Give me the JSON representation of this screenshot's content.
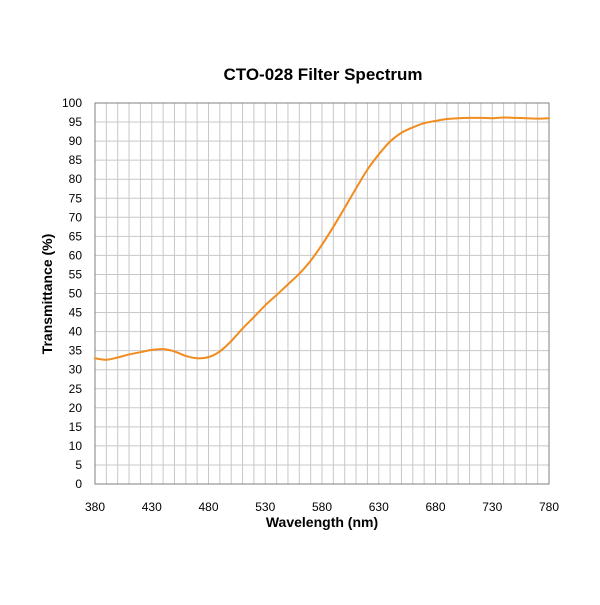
{
  "chart_data": {
    "type": "line",
    "title": "CTO-028 Filter Spectrum",
    "xlabel": "Wavelength (nm)",
    "ylabel": "Transmittance (%)",
    "xlim": [
      380,
      780
    ],
    "ylim": [
      0,
      100
    ],
    "x_ticks": [
      "380",
      "430",
      "480",
      "530",
      "580",
      "630",
      "680",
      "730",
      "780"
    ],
    "y_ticks": [
      "0",
      "5",
      "10",
      "15",
      "20",
      "25",
      "30",
      "35",
      "40",
      "45",
      "50",
      "55",
      "60",
      "65",
      "70",
      "75",
      "80",
      "85",
      "90",
      "95",
      "100"
    ],
    "x_minor_step": 10,
    "y_grid_step": 5,
    "grid": true,
    "legend": "none",
    "series": [
      {
        "color": "#F28C1E",
        "x": [
          380,
          390,
          400,
          410,
          420,
          430,
          440,
          450,
          460,
          470,
          480,
          490,
          500,
          510,
          520,
          530,
          540,
          550,
          560,
          570,
          580,
          590,
          600,
          610,
          620,
          630,
          640,
          650,
          660,
          670,
          680,
          690,
          700,
          710,
          720,
          730,
          740,
          750,
          760,
          770,
          780
        ],
        "y": [
          33.0,
          32.6,
          33.2,
          34.0,
          34.6,
          35.2,
          35.4,
          34.8,
          33.6,
          33.0,
          33.3,
          34.8,
          37.5,
          40.8,
          43.8,
          46.9,
          49.6,
          52.4,
          55.2,
          58.6,
          62.8,
          67.5,
          72.5,
          77.6,
          82.5,
          86.5,
          89.9,
          92.2,
          93.6,
          94.7,
          95.3,
          95.8,
          96.0,
          96.1,
          96.1,
          96.0,
          96.2,
          96.1,
          96.0,
          95.9,
          96.0
        ]
      }
    ]
  }
}
